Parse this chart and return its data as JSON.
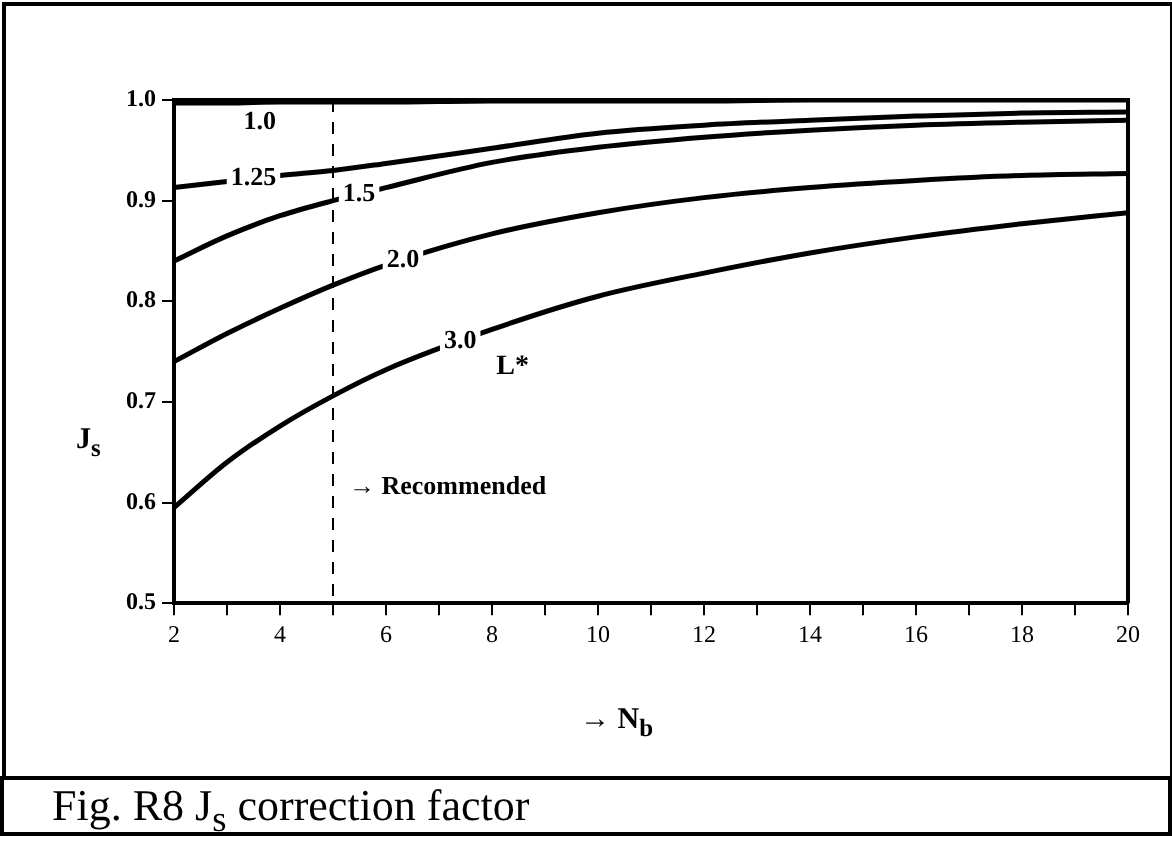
{
  "chart_data": {
    "type": "line",
    "xlabel": "→ N$_{b}$",
    "ylabel": "J$_{s}$",
    "x": [
      2,
      3,
      4,
      5,
      6,
      8,
      10,
      12,
      14,
      16,
      18,
      20
    ],
    "series": [
      {
        "name": "1.0",
        "color": "#000000",
        "values": [
          0.997,
          0.997,
          0.998,
          0.998,
          0.998,
          0.999,
          0.999,
          0.999,
          1.0,
          1.0,
          1.0,
          1.0
        ]
      },
      {
        "name": "1.25",
        "color": "#000000",
        "values": [
          0.913,
          0.919,
          0.925,
          0.93,
          0.937,
          0.952,
          0.967,
          0.975,
          0.98,
          0.984,
          0.987,
          0.988
        ]
      },
      {
        "name": "1.5",
        "color": "#000000",
        "values": [
          0.84,
          0.865,
          0.885,
          0.9,
          0.913,
          0.938,
          0.953,
          0.963,
          0.97,
          0.975,
          0.978,
          0.98
        ]
      },
      {
        "name": "2.0",
        "color": "#000000",
        "values": [
          0.74,
          0.768,
          0.793,
          0.816,
          0.836,
          0.867,
          0.888,
          0.903,
          0.913,
          0.92,
          0.925,
          0.927
        ]
      },
      {
        "name": "3.0",
        "color": "#000000",
        "values": [
          0.595,
          0.64,
          0.676,
          0.706,
          0.732,
          0.772,
          0.805,
          0.828,
          0.848,
          0.864,
          0.877,
          0.888
        ]
      }
    ],
    "xlim": [
      2,
      20
    ],
    "xticks": [
      2,
      {
        "value": 3,
        "label": null
      },
      4,
      {
        "value": 5,
        "label": null
      },
      6,
      {
        "value": 7,
        "label": null
      },
      8,
      {
        "value": 9,
        "label": null
      },
      10,
      {
        "value": 11,
        "label": null
      },
      12,
      {
        "value": 13,
        "label": null
      },
      14,
      {
        "value": 15,
        "label": null
      },
      16,
      {
        "value": 17,
        "label": null
      },
      18,
      {
        "value": 19,
        "label": null
      },
      20
    ],
    "ylim": [
      0.5,
      1.0
    ],
    "yticks": [
      0.5,
      0.6,
      0.7,
      0.8,
      0.9,
      {
        "value": 1,
        "label": "1.0"
      }
    ],
    "ref_lines": [
      {
        "axis": "x",
        "value": 5,
        "label": "→ Recommended",
        "line_style": "dashed"
      }
    ],
    "annotations": [
      "L*",
      "Fig. R8 J$_{s}$ correction factor"
    ],
    "grid": false,
    "legend": false,
    "marker": "none",
    "line_style": "solid"
  }
}
